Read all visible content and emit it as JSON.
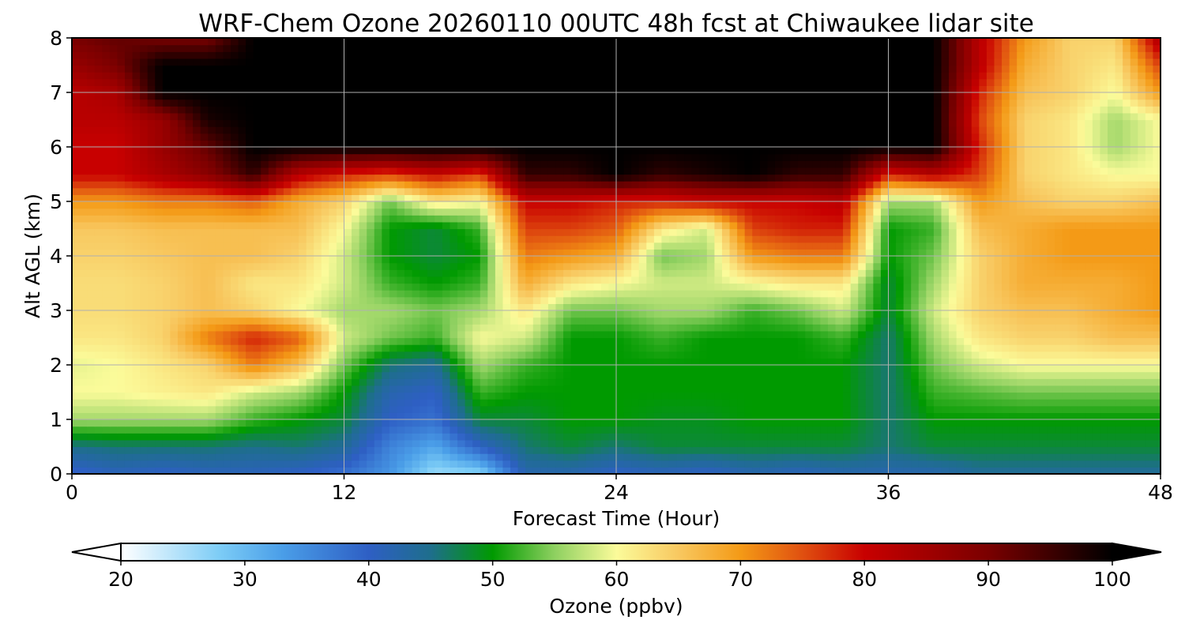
{
  "chart_data": {
    "type": "heatmap",
    "title": "WRF-Chem Ozone  20260110 00UTC 48h fcst at Chiwaukee lidar site",
    "xlabel": "Forecast Time (Hour)",
    "ylabel": "Alt AGL (km)",
    "xlim": [
      0,
      48
    ],
    "ylim": [
      0,
      8
    ],
    "x_ticks": [
      "0",
      "12",
      "24",
      "36",
      "48"
    ],
    "y_ticks": [
      "0",
      "1",
      "2",
      "3",
      "4",
      "5",
      "6",
      "7",
      "8"
    ],
    "grid": true,
    "colorbar": {
      "label": "Ozone  (ppbv)",
      "range": [
        20,
        100
      ],
      "extend": "both",
      "ticks": [
        "20",
        "30",
        "40",
        "50",
        "60",
        "70",
        "80",
        "90",
        "100"
      ],
      "color_stops": [
        {
          "value": 20,
          "color": "#ffffff"
        },
        {
          "value": 28,
          "color": "#7cccf6"
        },
        {
          "value": 33,
          "color": "#4a9ee8"
        },
        {
          "value": 40,
          "color": "#2e5fc4"
        },
        {
          "value": 45,
          "color": "#1e6e8c"
        },
        {
          "value": 50,
          "color": "#009a00"
        },
        {
          "value": 55,
          "color": "#8ed060"
        },
        {
          "value": 60,
          "color": "#fbfb9a"
        },
        {
          "value": 65,
          "color": "#f8c860"
        },
        {
          "value": 70,
          "color": "#f49a16"
        },
        {
          "value": 75,
          "color": "#e05010"
        },
        {
          "value": 80,
          "color": "#c80000"
        },
        {
          "value": 90,
          "color": "#7a0000"
        },
        {
          "value": 100,
          "color": "#000000"
        }
      ]
    },
    "grid_x_hours": [
      0,
      2,
      4,
      6,
      8,
      10,
      12,
      14,
      16,
      18,
      20,
      22,
      24,
      26,
      28,
      30,
      32,
      34,
      36,
      38,
      40,
      42,
      44,
      46,
      48
    ],
    "grid_y_km": [
      0,
      0.5,
      1,
      1.5,
      2,
      2.5,
      3,
      3.5,
      4,
      4.5,
      5,
      5.5,
      6,
      6.5,
      7,
      7.5,
      8
    ],
    "ozone_ppbv": [
      [
        39,
        41,
        40,
        41,
        41,
        40,
        38,
        34,
        26,
        27,
        42,
        42,
        40,
        41,
        40,
        42,
        41,
        42,
        42,
        42,
        44,
        44,
        44,
        44,
        44
      ],
      [
        45,
        46,
        46,
        46,
        45,
        46,
        44,
        36,
        32,
        40,
        46,
        48,
        46,
        48,
        48,
        48,
        48,
        48,
        46,
        48,
        48,
        48,
        48,
        48,
        48
      ],
      [
        56,
        56,
        56,
        56,
        52,
        50,
        48,
        40,
        38,
        48,
        48,
        50,
        50,
        49,
        49,
        50,
        50,
        50,
        46,
        50,
        50,
        50,
        50,
        50,
        50
      ],
      [
        60,
        60,
        61,
        62,
        58,
        56,
        50,
        42,
        40,
        52,
        50,
        50,
        50,
        50,
        50,
        50,
        50,
        50,
        46,
        52,
        53,
        54,
        54,
        54,
        54
      ],
      [
        59,
        60,
        62,
        64,
        72,
        66,
        54,
        46,
        44,
        56,
        52,
        50,
        50,
        50,
        50,
        50,
        50,
        50,
        46,
        54,
        58,
        60,
        60,
        60,
        60
      ],
      [
        62,
        62,
        64,
        72,
        78,
        74,
        58,
        54,
        52,
        60,
        58,
        50,
        50,
        52,
        50,
        50,
        50,
        52,
        46,
        56,
        62,
        64,
        64,
        66,
        66
      ],
      [
        63,
        63,
        64,
        66,
        64,
        60,
        56,
        56,
        54,
        56,
        62,
        54,
        54,
        56,
        56,
        52,
        54,
        58,
        48,
        58,
        64,
        66,
        66,
        68,
        70
      ],
      [
        63,
        63,
        64,
        66,
        62,
        62,
        58,
        52,
        50,
        52,
        68,
        62,
        60,
        58,
        58,
        60,
        62,
        62,
        48,
        56,
        64,
        68,
        68,
        68,
        70
      ],
      [
        64,
        64,
        65,
        66,
        66,
        64,
        58,
        50,
        48,
        50,
        72,
        70,
        68,
        54,
        56,
        70,
        72,
        72,
        50,
        54,
        64,
        68,
        70,
        70,
        70
      ],
      [
        65,
        65,
        66,
        66,
        66,
        66,
        60,
        50,
        48,
        52,
        76,
        76,
        74,
        62,
        58,
        76,
        78,
        78,
        50,
        52,
        66,
        68,
        70,
        70,
        70
      ],
      [
        70,
        70,
        72,
        72,
        74,
        68,
        64,
        54,
        62,
        60,
        80,
        80,
        78,
        78,
        80,
        80,
        80,
        82,
        56,
        56,
        70,
        66,
        64,
        64,
        66
      ],
      [
        80,
        80,
        84,
        88,
        96,
        82,
        78,
        76,
        80,
        76,
        96,
        96,
        100,
        96,
        98,
        100,
        96,
        96,
        78,
        82,
        76,
        64,
        62,
        60,
        60
      ],
      [
        80,
        80,
        86,
        92,
        100,
        100,
        100,
        100,
        100,
        100,
        100,
        100,
        100,
        100,
        100,
        100,
        100,
        100,
        100,
        100,
        78,
        64,
        62,
        56,
        60
      ],
      [
        82,
        82,
        86,
        98,
        100,
        100,
        100,
        100,
        100,
        100,
        100,
        100,
        100,
        100,
        100,
        100,
        100,
        100,
        100,
        100,
        76,
        64,
        62,
        56,
        60
      ],
      [
        82,
        84,
        100,
        100,
        100,
        100,
        100,
        100,
        100,
        100,
        100,
        100,
        100,
        100,
        100,
        100,
        100,
        100,
        100,
        100,
        78,
        66,
        64,
        60,
        70
      ],
      [
        86,
        90,
        100,
        100,
        100,
        100,
        100,
        100,
        100,
        100,
        100,
        100,
        100,
        100,
        100,
        100,
        100,
        100,
        100,
        100,
        82,
        68,
        64,
        62,
        76
      ],
      [
        90,
        92,
        90,
        90,
        100,
        100,
        100,
        100,
        100,
        100,
        100,
        100,
        100,
        100,
        100,
        100,
        100,
        100,
        100,
        100,
        82,
        70,
        64,
        64,
        84
      ]
    ]
  }
}
